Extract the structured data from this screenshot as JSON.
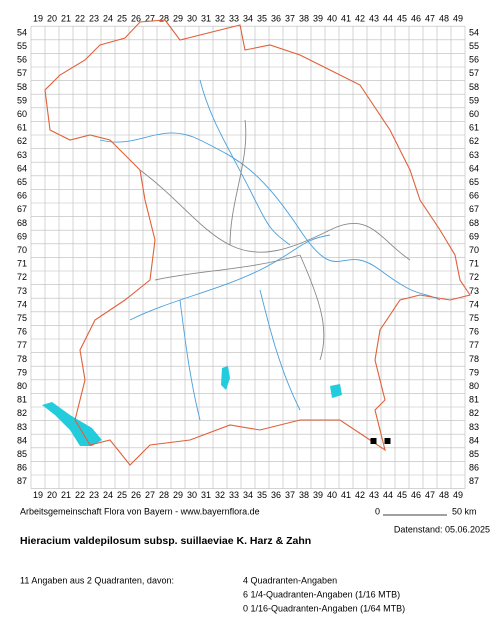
{
  "map": {
    "columns": [
      19,
      20,
      21,
      22,
      23,
      24,
      25,
      26,
      27,
      28,
      29,
      30,
      31,
      32,
      33,
      34,
      35,
      36,
      37,
      38,
      39,
      40,
      41,
      42,
      43,
      44,
      45,
      46,
      47,
      48,
      49
    ],
    "rows": [
      54,
      55,
      56,
      57,
      58,
      59,
      60,
      61,
      62,
      63,
      64,
      65,
      66,
      67,
      68,
      69,
      70,
      71,
      72,
      73,
      74,
      75,
      76,
      77,
      78,
      79,
      80,
      81,
      82,
      83,
      84,
      85,
      86,
      87
    ],
    "records": [
      {
        "col": 43,
        "row": 84
      },
      {
        "col": 44,
        "row": 84
      }
    ]
  },
  "credit": "Arbeitsgemeinschaft Flora von Bayern - www.bayernflora.de",
  "scale": {
    "start": "0",
    "end": "50 km"
  },
  "date": "Datenstand: 05.06.2025",
  "title": "Hieracium valdepilosum subsp. suillaeviae K. Harz & Zahn",
  "summary": "11 Angaben aus 2 Quadranten, davon:",
  "details": [
    "4 Quadranten-Angaben",
    "6 1/4-Quadranten-Angaben (1/16 MTB)",
    "0 1/16-Quadranten-Angaben (1/64 MTB)"
  ]
}
